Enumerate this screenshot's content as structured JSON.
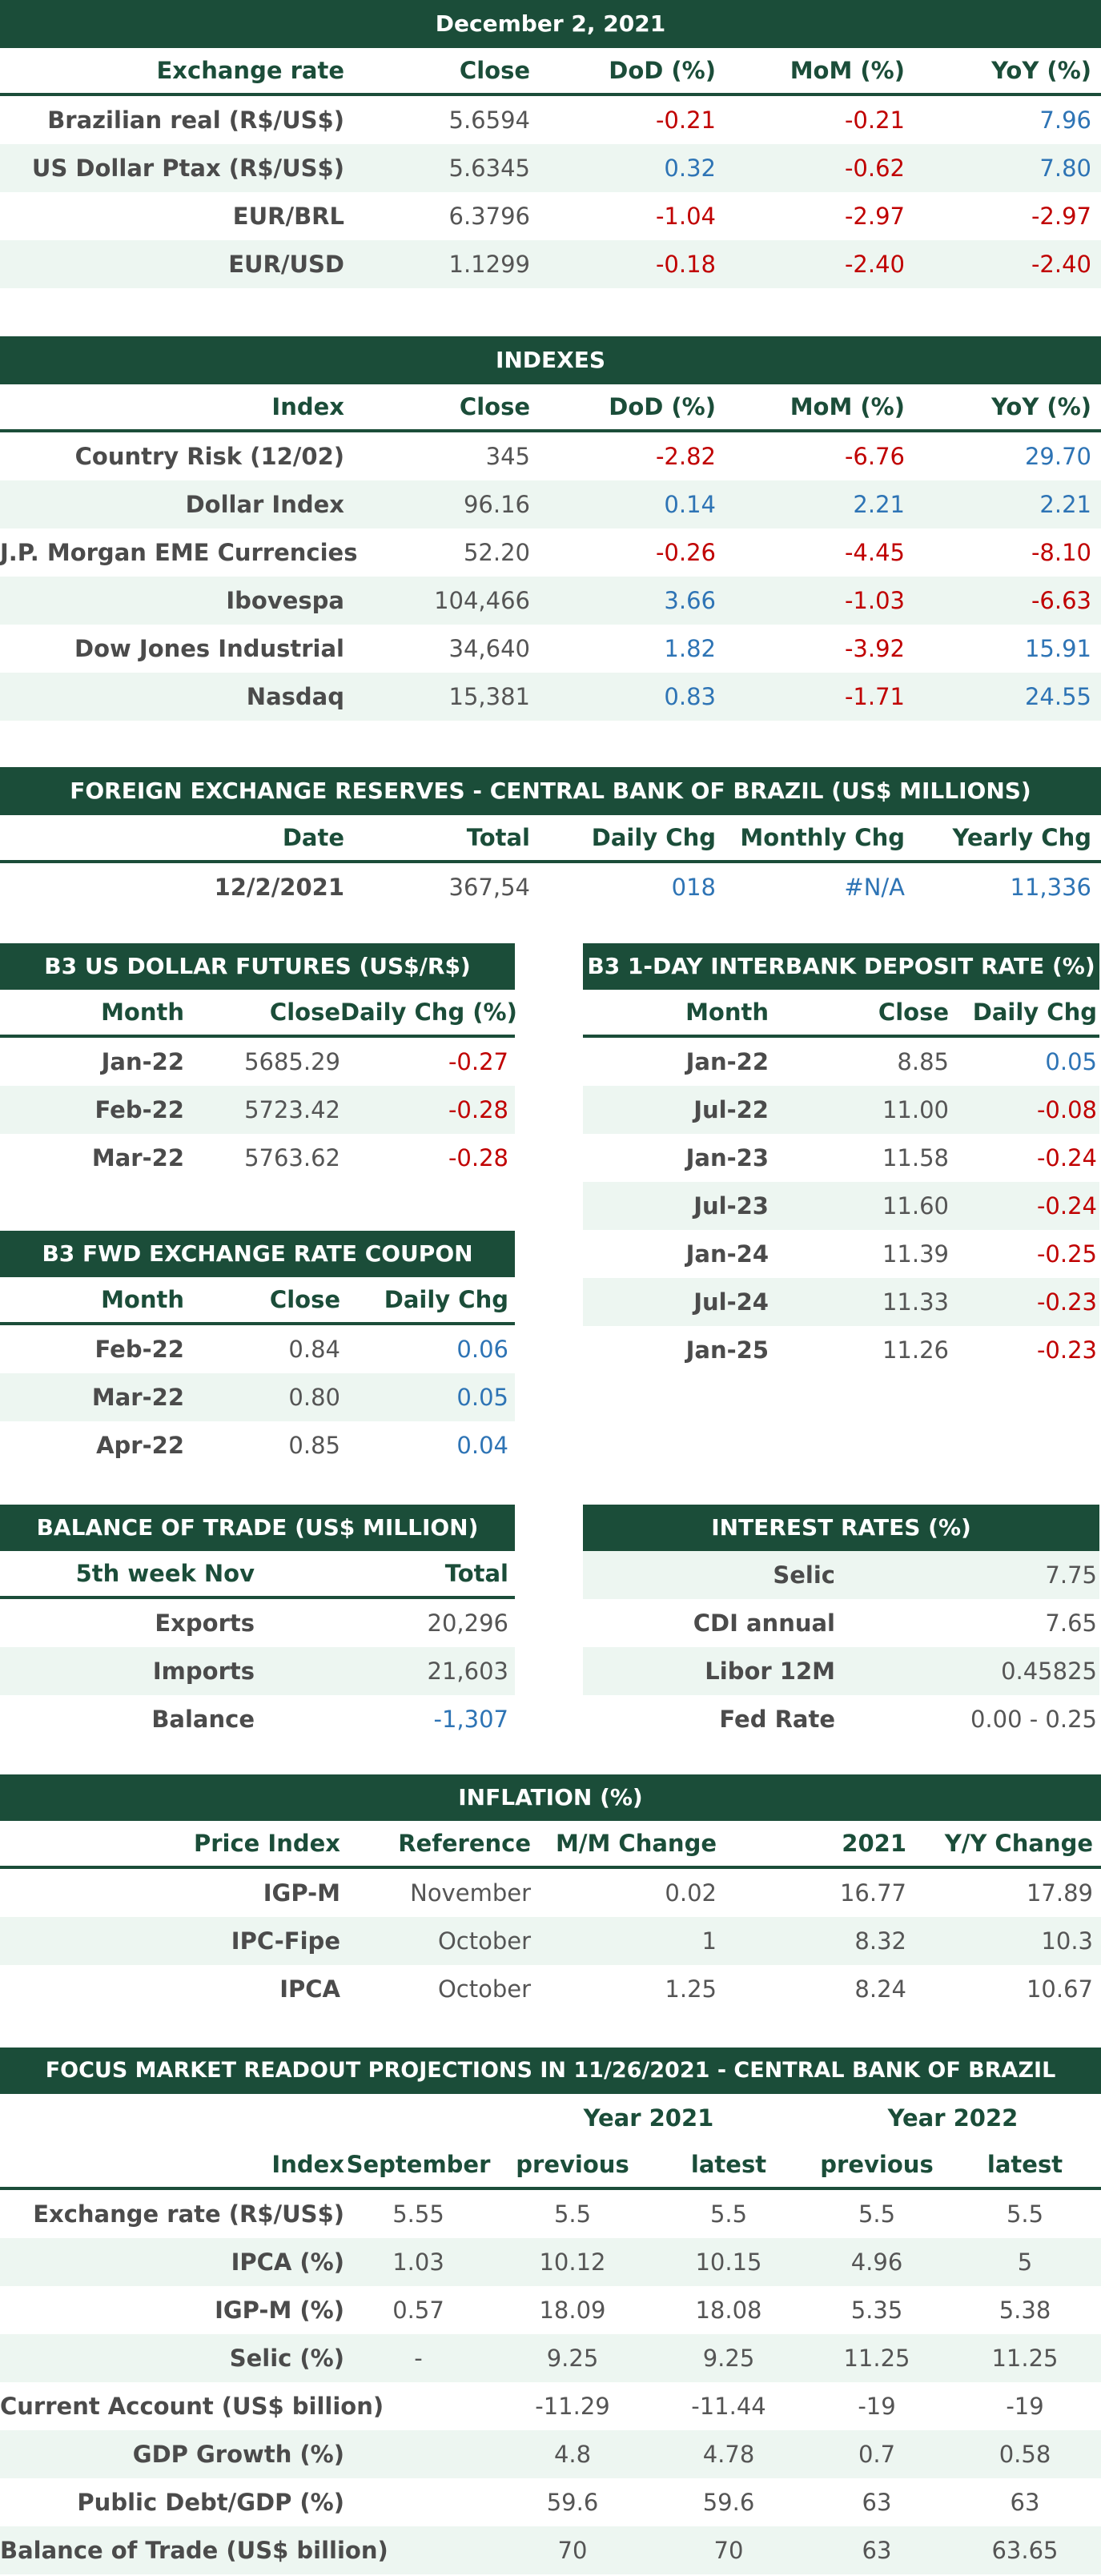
{
  "exchange": {
    "title": "December 2, 2021",
    "headers": [
      "Exchange rate",
      "Close",
      "DoD (%)",
      "MoM (%)",
      "YoY (%)"
    ],
    "rows": [
      {
        "name": "Brazilian real (R$/US$)",
        "close": "5.6594",
        "dod": "-0.21",
        "mom": "-0.21",
        "yoy": "7.96"
      },
      {
        "name": "US Dollar Ptax (R$/US$)",
        "close": "5.6345",
        "dod": "0.32",
        "mom": "-0.62",
        "yoy": "7.80"
      },
      {
        "name": "EUR/BRL",
        "close": "6.3796",
        "dod": "-1.04",
        "mom": "-2.97",
        "yoy": "-2.97"
      },
      {
        "name": "EUR/USD",
        "close": "1.1299",
        "dod": "-0.18",
        "mom": "-2.40",
        "yoy": "-2.40"
      }
    ]
  },
  "indexes": {
    "title": "INDEXES",
    "headers": [
      "Index",
      "Close",
      "DoD (%)",
      "MoM (%)",
      "YoY (%)"
    ],
    "rows": [
      {
        "name": "Country Risk (12/02)",
        "close": "345",
        "dod": "-2.82",
        "mom": "-6.76",
        "yoy": "29.70"
      },
      {
        "name": "Dollar Index",
        "close": "96.16",
        "dod": "0.14",
        "mom": "2.21",
        "yoy": "2.21"
      },
      {
        "name": "J.P. Morgan EME Currencies",
        "close": "52.20",
        "dod": "-0.26",
        "mom": "-4.45",
        "yoy": "-8.10"
      },
      {
        "name": "Ibovespa",
        "close": "104,466",
        "dod": "3.66",
        "mom": "-1.03",
        "yoy": "-6.63"
      },
      {
        "name": "Dow Jones Industrial",
        "close": "34,640",
        "dod": "1.82",
        "mom": "-3.92",
        "yoy": "15.91"
      },
      {
        "name": "Nasdaq",
        "close": "15,381",
        "dod": "0.83",
        "mom": "-1.71",
        "yoy": "24.55"
      }
    ]
  },
  "reserves": {
    "title": "FOREIGN EXCHANGE RESERVES - CENTRAL BANK OF BRAZIL (US$ MILLIONS)",
    "headers": [
      "Date",
      "Total",
      "Daily Chg",
      "Monthly Chg",
      "Yearly Chg"
    ],
    "rows": [
      {
        "date": "12/2/2021",
        "total": "367,54",
        "daily": "018",
        "monthly": "#N/A",
        "yearly": "11,336"
      }
    ]
  },
  "dollar_futures": {
    "title": "B3 US DOLLAR FUTURES (US$/R$)",
    "headers": [
      "Month",
      "Close",
      "Daily Chg (%)"
    ],
    "rows": [
      {
        "month": "Jan-22",
        "close": "5685.29",
        "chg": "-0.27"
      },
      {
        "month": "Feb-22",
        "close": "5723.42",
        "chg": "-0.28"
      },
      {
        "month": "Mar-22",
        "close": "5763.62",
        "chg": "-0.28"
      }
    ]
  },
  "interbank": {
    "title": "B3 1-DAY INTERBANK DEPOSIT RATE (%)",
    "headers": [
      "Month",
      "Close",
      "Daily Chg"
    ],
    "rows": [
      {
        "month": "Jan-22",
        "close": "8.85",
        "chg": "0.05"
      },
      {
        "month": "Jul-22",
        "close": "11.00",
        "chg": "-0.08"
      },
      {
        "month": "Jan-23",
        "close": "11.58",
        "chg": "-0.24"
      },
      {
        "month": "Jul-23",
        "close": "11.60",
        "chg": "-0.24"
      },
      {
        "month": "Jan-24",
        "close": "11.39",
        "chg": "-0.25"
      },
      {
        "month": "Jul-24",
        "close": "11.33",
        "chg": "-0.23"
      },
      {
        "month": "Jan-25",
        "close": "11.26",
        "chg": "-0.23"
      }
    ]
  },
  "coupon": {
    "title": "B3 FWD EXCHANGE RATE COUPON",
    "headers": [
      "Month",
      "Close",
      "Daily Chg"
    ],
    "rows": [
      {
        "month": "Feb-22",
        "close": "0.84",
        "chg": "0.06"
      },
      {
        "month": "Mar-22",
        "close": "0.80",
        "chg": "0.05"
      },
      {
        "month": "Apr-22",
        "close": "0.85",
        "chg": "0.04"
      }
    ]
  },
  "trade": {
    "title": "BALANCE OF TRADE (US$ MILLION)",
    "headers": [
      "5th week Nov",
      "Total"
    ],
    "rows": [
      {
        "name": "Exports",
        "total": "20,296"
      },
      {
        "name": "Imports",
        "total": "21,603"
      },
      {
        "name": "Balance",
        "total": "-1,307"
      }
    ]
  },
  "rates": {
    "title": "INTEREST RATES (%)",
    "rows": [
      {
        "name": "Selic",
        "value": "7.75"
      },
      {
        "name": "CDI annual",
        "value": "7.65"
      },
      {
        "name": "Libor 12M",
        "value": "0.45825"
      },
      {
        "name": "Fed Rate",
        "value": "0.00 - 0.25"
      }
    ]
  },
  "inflation": {
    "title": "INFLATION (%)",
    "headers": [
      "Price Index",
      "Reference",
      "M/M Change",
      "2021",
      "Y/Y Change"
    ],
    "rows": [
      {
        "name": "IGP-M",
        "ref": "November",
        "mm": "0.02",
        "y2021": "16.77",
        "yy": "17.89"
      },
      {
        "name": "IPC-Fipe",
        "ref": "October",
        "mm": "1",
        "y2021": "8.32",
        "yy": "10.3"
      },
      {
        "name": "IPCA",
        "ref": "October",
        "mm": "1.25",
        "y2021": "8.24",
        "yy": "10.67"
      }
    ]
  },
  "focus": {
    "title": "FOCUS MARKET READOUT PROJECTIONS IN 11/26/2021 - CENTRAL BANK OF BRAZIL",
    "group_2021": "Year 2021",
    "group_2022": "Year 2022",
    "headers": [
      "Index",
      "September",
      "previous",
      "latest",
      "previous",
      "latest"
    ],
    "rows": [
      {
        "name": "Exchange rate (R$/US$)",
        "sep": "5.55",
        "p21": "5.5",
        "l21": "5.5",
        "p22": "5.5",
        "l22": "5.5"
      },
      {
        "name": "IPCA (%)",
        "sep": "1.03",
        "p21": "10.12",
        "l21": "10.15",
        "p22": "4.96",
        "l22": "5"
      },
      {
        "name": "IGP-M (%)",
        "sep": "0.57",
        "p21": "18.09",
        "l21": "18.08",
        "p22": "5.35",
        "l22": "5.38"
      },
      {
        "name": "Selic (%)",
        "sep": "-",
        "p21": "9.25",
        "l21": "9.25",
        "p22": "11.25",
        "l22": "11.25"
      },
      {
        "name": "Current Account (US$ billion)",
        "sep": "",
        "p21": "-11.29",
        "l21": "-11.44",
        "p22": "-19",
        "l22": "-19"
      },
      {
        "name": "GDP Growth (%)",
        "sep": "",
        "p21": "4.8",
        "l21": "4.78",
        "p22": "0.7",
        "l22": "0.58"
      },
      {
        "name": "Public Debt/GDP (%)",
        "sep": "",
        "p21": "59.6",
        "l21": "59.6",
        "p22": "63",
        "l22": "63"
      },
      {
        "name": "Balance of Trade (US$ billion)",
        "sep": "",
        "p21": "70",
        "l21": "70",
        "p22": "63",
        "l22": "63.65"
      }
    ]
  },
  "colors": {
    "header": "#1b4d39",
    "stripe": "#edf6f1",
    "negative": "#c00000",
    "positive": "#2e74b5"
  }
}
